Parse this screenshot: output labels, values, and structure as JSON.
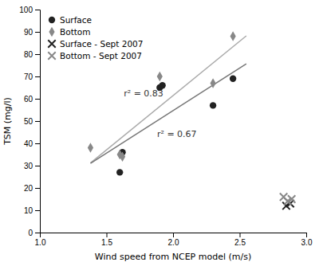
{
  "chart_data": {
    "type": "scatter",
    "x_label": "Wind speed from NCEP model (m/s)",
    "y_label": "TSM (mg/l)",
    "xlim": [
      1.0,
      3.0
    ],
    "ylim": [
      0,
      100
    ],
    "xticks": [
      {
        "value": 1.0,
        "label": "1.0"
      },
      1.5,
      {
        "value": 2.0,
        "label": "2.0"
      },
      2.5,
      {
        "value": 3.0,
        "label": "3.0"
      }
    ],
    "yticks": [
      0,
      10,
      20,
      30,
      40,
      50,
      60,
      70,
      80,
      90,
      100
    ],
    "grid": false,
    "legend": "upper left",
    "series": [
      {
        "type": "line",
        "color": "#aaaaaa",
        "line_style": "solid",
        "x": [
          1.38,
          2.55
        ],
        "values": [
          31.22,
          88.21
        ]
      },
      {
        "type": "line",
        "color": "#777777",
        "line_style": "solid",
        "x": [
          1.38,
          2.55
        ],
        "values": [
          31.04,
          75.63
        ]
      },
      {
        "type": "scatter",
        "name": "Surface",
        "color": "#222222",
        "marker": "circle",
        "x": [
          1.6,
          1.62,
          1.9,
          1.92,
          2.3,
          2.45
        ],
        "values": [
          27,
          36,
          65,
          66,
          57,
          69
        ]
      },
      {
        "type": "scatter",
        "name": "Bottom",
        "color": "#888888",
        "marker": "diamond",
        "x": [
          1.38,
          1.6,
          1.62,
          1.9,
          2.3,
          2.45
        ],
        "values": [
          38,
          35,
          34,
          70,
          67,
          88
        ]
      },
      {
        "type": "scatter",
        "name": "Surface - Sept 2007",
        "color": "#222222",
        "marker": "x",
        "x": [
          2.85,
          2.88
        ],
        "values": [
          12,
          13
        ]
      },
      {
        "type": "scatter",
        "name": "Bottom - Sept 2007",
        "color": "#888888",
        "marker": "x",
        "x": [
          2.83,
          2.86,
          2.89
        ],
        "values": [
          16,
          14,
          15
        ]
      }
    ],
    "annotations": [
      {
        "text": "r² = 0.83",
        "x": 1.63,
        "y": 61
      },
      {
        "text": "r² = 0.67",
        "x": 1.88,
        "y": 43
      }
    ]
  }
}
